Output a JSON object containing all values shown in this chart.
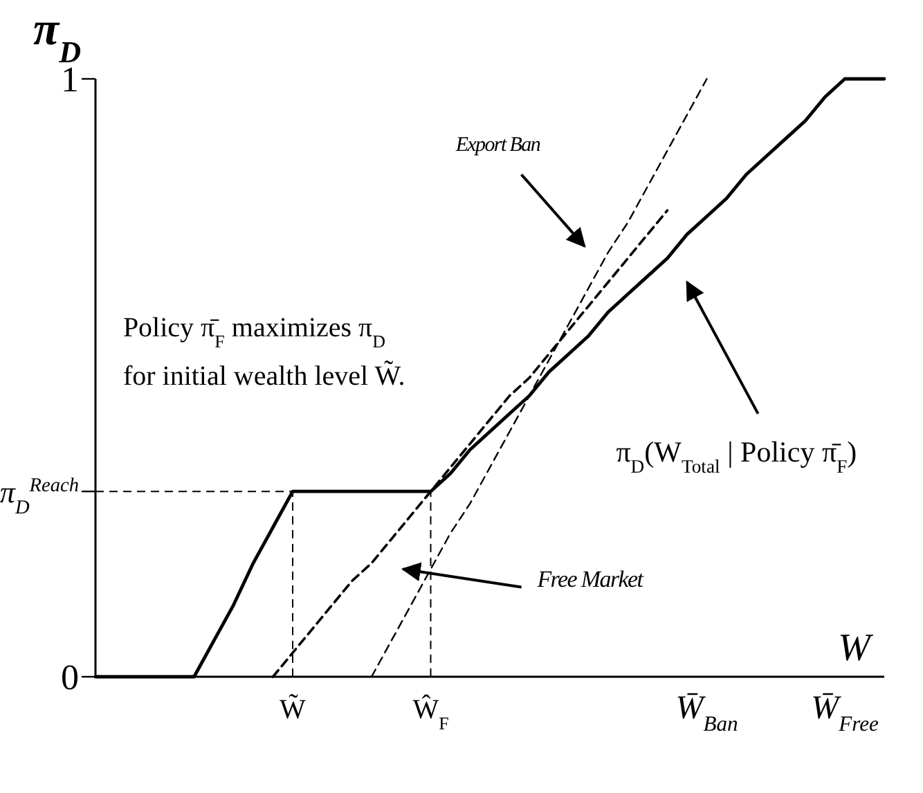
{
  "chart_data": {
    "type": "line",
    "xlabel": "W",
    "ylabel": "π$_{D}$",
    "ylim": [
      0,
      1
    ],
    "categories": [
      null,
      null,
      null,
      null,
      null,
      null,
      null,
      null,
      null,
      null,
      "W̃",
      null,
      null,
      null,
      null,
      null,
      null,
      "Ŵ$_{F}$",
      null,
      null,
      null,
      null,
      null,
      null,
      null,
      null,
      null,
      null,
      null,
      null,
      null,
      "W̄$_{Ban}$",
      null,
      null,
      null,
      null,
      null,
      null,
      "W̄$_{Free}$",
      null,
      null
    ],
    "yticks": [
      0,
      {
        "value": 0.31,
        "label": "π$_{D}$$^{Reach}$"
      },
      1
    ],
    "grid": false,
    "series": [
      {
        "color": "#000000",
        "line_style": "solid",
        "values": [
          0,
          0,
          0,
          0,
          0,
          0,
          0.06,
          0.12,
          0.19,
          0.25,
          0.31,
          0.31,
          0.31,
          0.31,
          0.31,
          0.31,
          0.31,
          0.31,
          0.34,
          0.38,
          0.41,
          0.44,
          0.47,
          0.51,
          0.54,
          0.57,
          0.61,
          0.64,
          0.67,
          0.7,
          0.74,
          0.77,
          0.8,
          0.84,
          0.87,
          0.9,
          0.93,
          0.97,
          1,
          1,
          1
        ]
      },
      {
        "color": "#000000",
        "line_style": "dashed",
        "values": [
          null,
          null,
          null,
          null,
          null,
          null,
          null,
          null,
          null,
          0,
          0.04,
          0.08,
          0.12,
          0.16,
          0.19,
          0.23,
          0.27,
          0.31,
          0.35,
          0.39,
          0.43,
          0.47,
          0.5,
          0.54,
          0.58,
          0.62,
          0.66,
          0.7,
          0.74,
          0.78,
          null,
          null,
          null,
          null,
          null,
          null,
          null,
          null,
          null,
          null,
          null
        ]
      },
      {
        "color": "#000000",
        "line_style": "dashed",
        "values": [
          null,
          null,
          null,
          null,
          null,
          null,
          null,
          null,
          null,
          null,
          null,
          null,
          null,
          null,
          0,
          0.06,
          0.12,
          0.18,
          0.24,
          0.29,
          0.35,
          0.41,
          0.47,
          0.53,
          0.59,
          0.65,
          0.71,
          0.76,
          0.82,
          0.88,
          0.94,
          1,
          null,
          null,
          null,
          null,
          null,
          null,
          null,
          null,
          null
        ]
      }
    ],
    "ref_lines": [
      {
        "axis": "y",
        "value": 0.31,
        "line_style": "dashed"
      },
      {
        "axis": "x",
        "value": "W̃",
        "line_style": "dashed"
      },
      {
        "axis": "x",
        "value": "Ŵ$_{F}$",
        "line_style": "dashed"
      }
    ],
    "annotations": [
      "π$_{D}$(W$_{Total}$ | Policy π̄$_{F}$)",
      "Free Market",
      "Export Ban",
      "Policy π̄$_{F}$ maximizes π$_{D}$",
      "for initial wealth level W̃."
    ]
  }
}
